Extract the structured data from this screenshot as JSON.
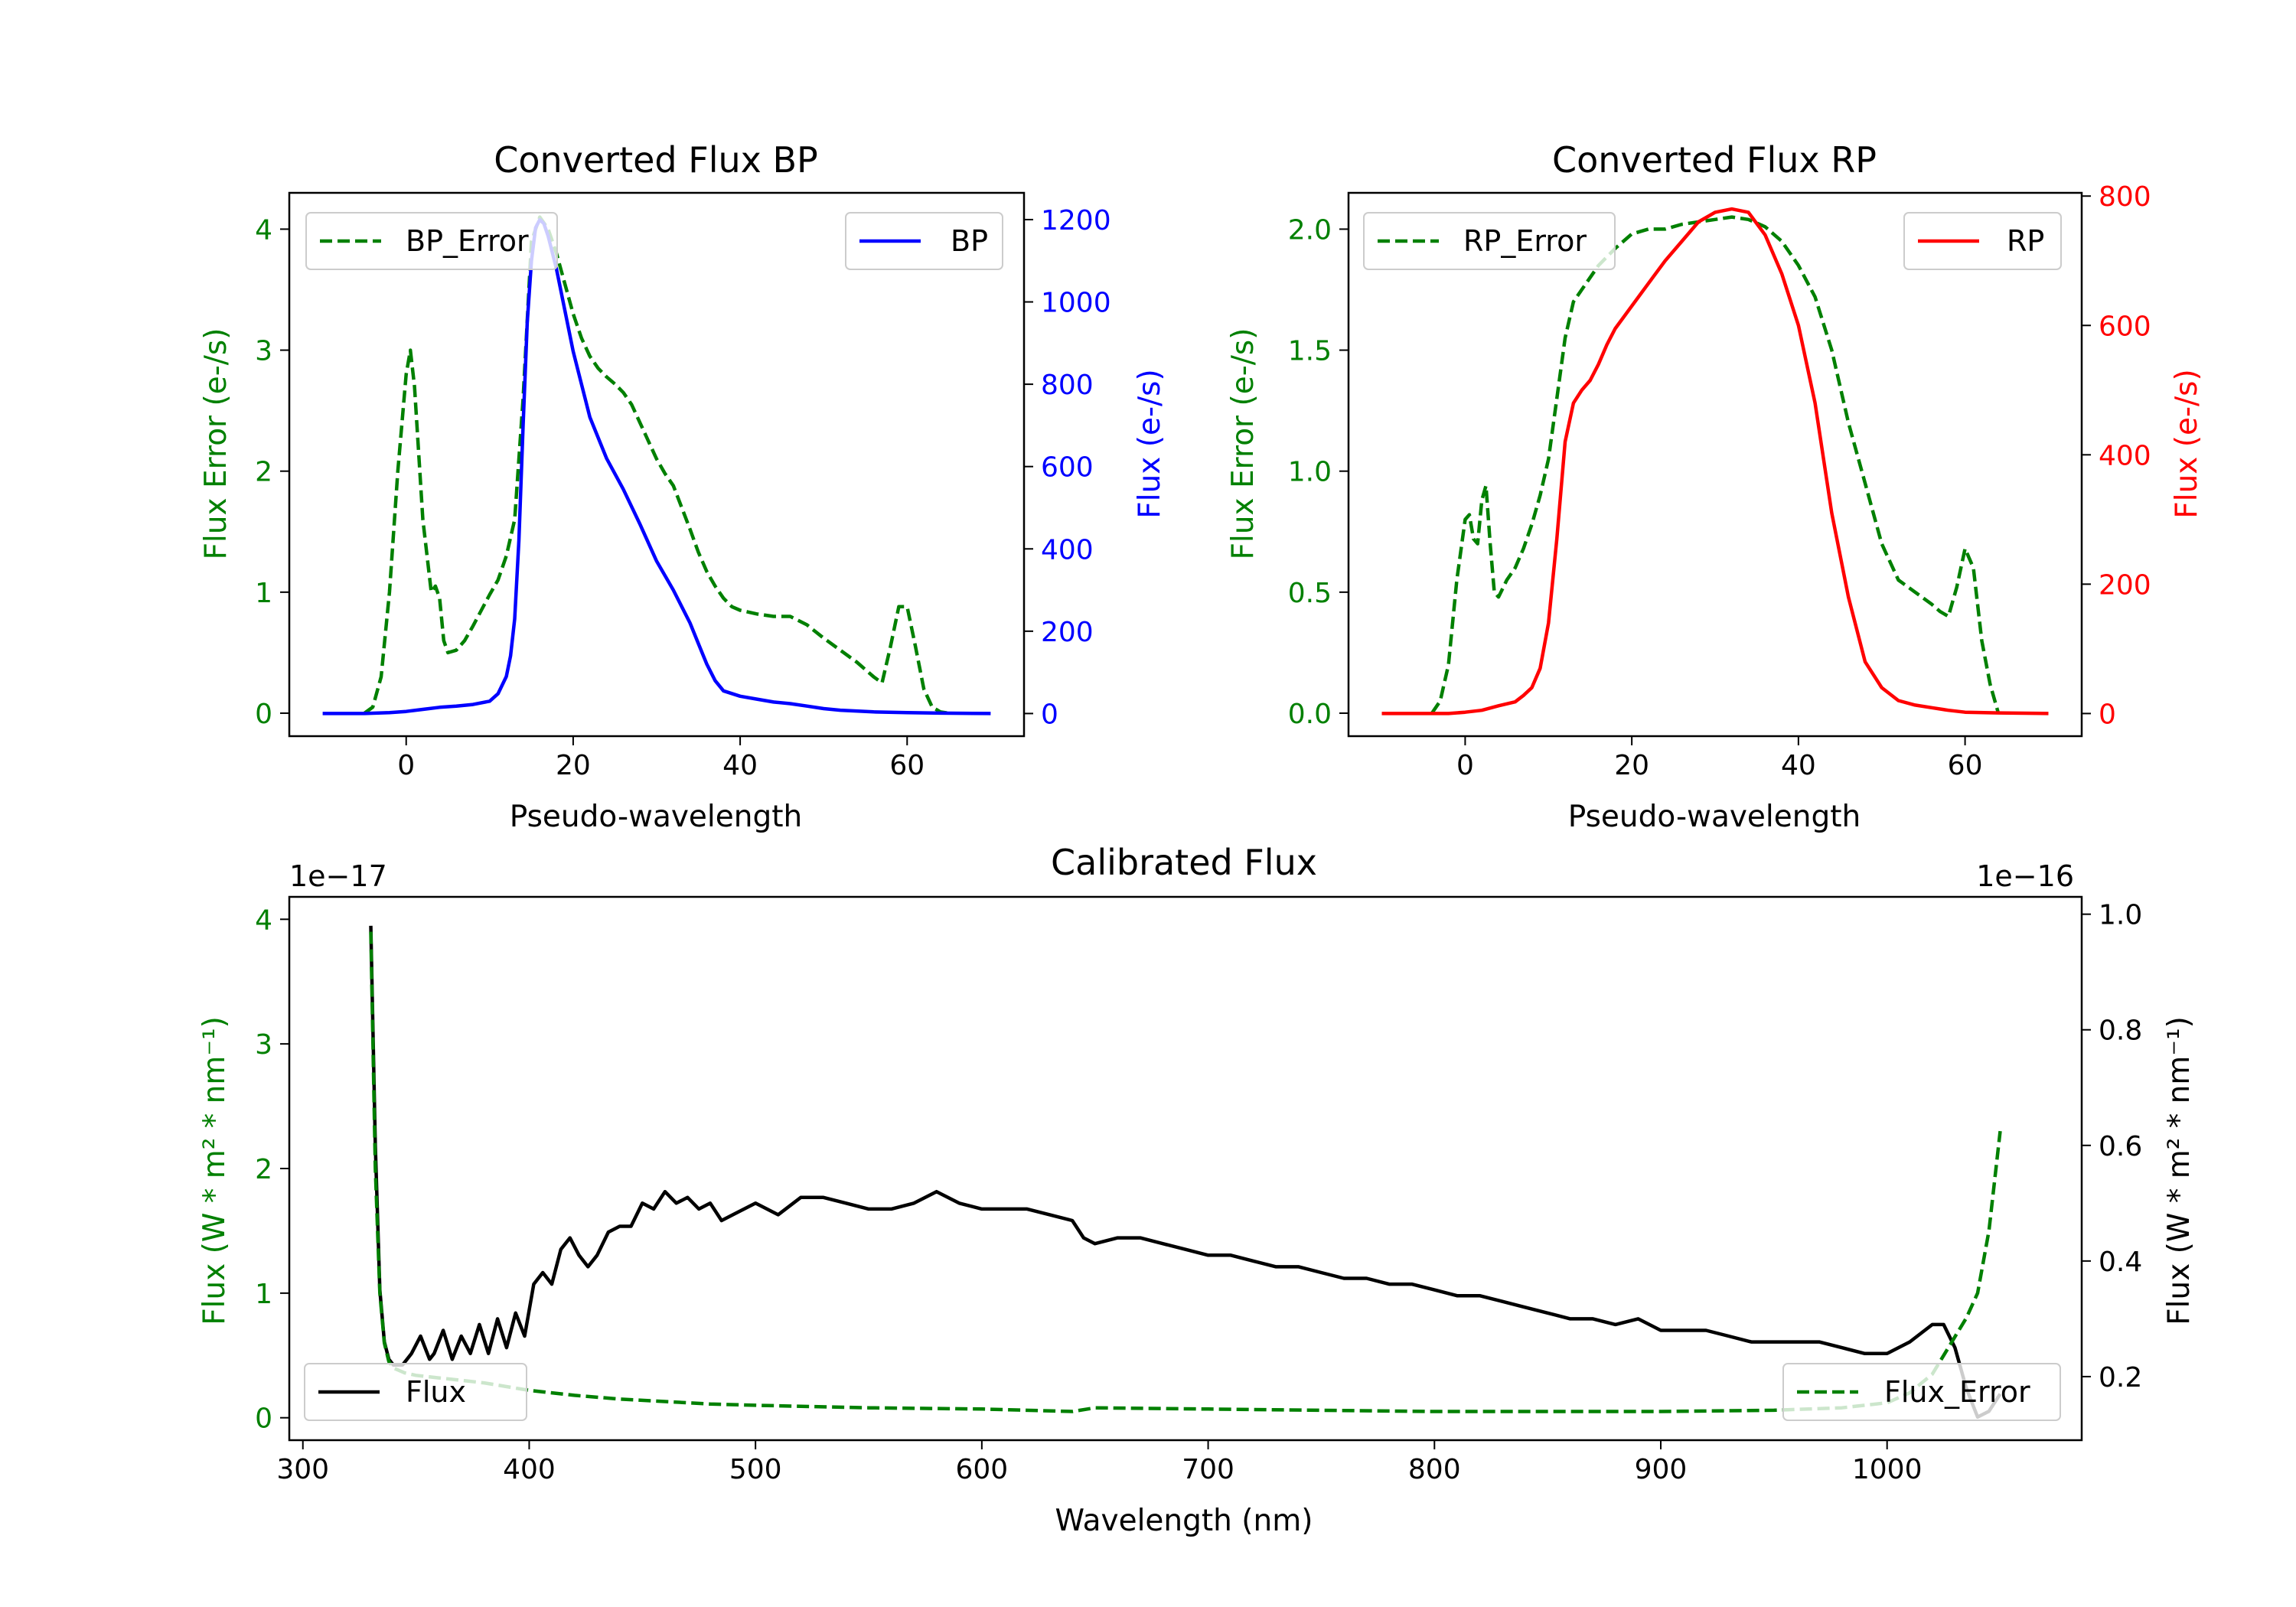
{
  "colors": {
    "error": "#008000",
    "bp": "#0000ff",
    "rp": "#ff0000",
    "flux": "#000000",
    "frame": "#000000"
  },
  "chart_data": [
    {
      "id": "bp",
      "type": "line",
      "title": "Converted Flux BP",
      "xlabel": "Pseudo-wavelength",
      "ylabel_left": "Flux Error (e-/s)",
      "ylabel_right": "Flux (e-/s)",
      "xlim": [
        -14,
        74
      ],
      "ylim_left": [
        -0.19,
        4.3
      ],
      "ylim_right": [
        -55,
        1265
      ],
      "x_ticks": [
        0,
        20,
        40,
        60
      ],
      "y_ticks_left": [
        0,
        1,
        2,
        3,
        4
      ],
      "y_ticks_right": [
        0,
        200,
        400,
        600,
        800,
        1000,
        1200
      ],
      "legend_left": "BP_Error",
      "legend_right": "BP",
      "series": [
        {
          "name": "BP_Error",
          "axis": "left",
          "style": "dashed",
          "color": "#008000",
          "x": [
            -5,
            -4,
            -3,
            -2,
            -1,
            0,
            0.5,
            1,
            2,
            3,
            3.5,
            4,
            4.5,
            5,
            6,
            7,
            8,
            9,
            10,
            11,
            12,
            13,
            14,
            15,
            16,
            17,
            18,
            19,
            20,
            21,
            22,
            23,
            24,
            25,
            26,
            27,
            28,
            29,
            30,
            31,
            32,
            33,
            34,
            35,
            36,
            37,
            38,
            39,
            40,
            42,
            44,
            46,
            48,
            50,
            52,
            54,
            56,
            57,
            58,
            59,
            60,
            61,
            62,
            63,
            64,
            65
          ],
          "y": [
            0,
            0.05,
            0.3,
            1.0,
            2.0,
            2.8,
            3.0,
            2.7,
            1.6,
            1.0,
            1.05,
            0.95,
            0.6,
            0.5,
            0.52,
            0.6,
            0.72,
            0.85,
            0.98,
            1.1,
            1.3,
            1.6,
            2.6,
            3.9,
            4.1,
            4.0,
            3.8,
            3.55,
            3.3,
            3.1,
            2.95,
            2.85,
            2.78,
            2.72,
            2.65,
            2.55,
            2.4,
            2.25,
            2.1,
            1.98,
            1.88,
            1.7,
            1.52,
            1.33,
            1.17,
            1.05,
            0.95,
            0.88,
            0.85,
            0.82,
            0.8,
            0.8,
            0.73,
            0.62,
            0.52,
            0.42,
            0.3,
            0.25,
            0.55,
            0.88,
            0.88,
            0.55,
            0.2,
            0.05,
            0.01,
            0
          ]
        },
        {
          "name": "BP",
          "axis": "right",
          "style": "solid",
          "color": "#0000ff",
          "x": [
            -10,
            -5,
            -2,
            0,
            2,
            4,
            6,
            8,
            10,
            11,
            12,
            12.5,
            13,
            13.5,
            14,
            14.5,
            15,
            15.5,
            16,
            16.5,
            17,
            18,
            19,
            20,
            22,
            24,
            26,
            28,
            30,
            32,
            34,
            35,
            36,
            37,
            38,
            40,
            42,
            44,
            46,
            48,
            50,
            52,
            56,
            60,
            64,
            70
          ],
          "y": [
            0,
            0,
            2,
            5,
            10,
            15,
            18,
            22,
            30,
            48,
            90,
            140,
            230,
            420,
            700,
            950,
            1100,
            1180,
            1200,
            1190,
            1160,
            1080,
            980,
            880,
            720,
            620,
            545,
            460,
            370,
            300,
            220,
            170,
            120,
            80,
            55,
            42,
            35,
            28,
            24,
            18,
            12,
            8,
            4,
            2,
            1,
            0
          ]
        }
      ]
    },
    {
      "id": "rp",
      "type": "line",
      "title": "Converted Flux RP",
      "xlabel": "Pseudo-wavelength",
      "ylabel_left": "Flux Error (e-/s)",
      "ylabel_right": "Flux (e-/s)",
      "xlim": [
        -14,
        74
      ],
      "ylim_left": [
        -0.095,
        2.15
      ],
      "ylim_right": [
        -35,
        805
      ],
      "x_ticks": [
        0,
        20,
        40,
        60
      ],
      "y_ticks_left": [
        0.0,
        0.5,
        1.0,
        1.5,
        2.0
      ],
      "y_ticks_left_labels": [
        "0.0",
        "0.5",
        "1.0",
        "1.5",
        "2.0"
      ],
      "y_ticks_right": [
        0,
        200,
        400,
        600,
        800
      ],
      "legend_left": "RP_Error",
      "legend_right": "RP",
      "series": [
        {
          "name": "RP_Error",
          "axis": "left",
          "style": "dashed",
          "color": "#008000",
          "x": [
            -4,
            -3,
            -2,
            -1,
            0,
            0.5,
            1,
            1.5,
            2,
            2.5,
            3,
            3.5,
            4,
            5,
            6,
            7,
            8,
            9,
            10,
            11,
            12,
            13,
            14,
            16,
            18,
            20,
            22,
            24,
            26,
            28,
            30,
            32,
            34,
            36,
            38,
            40,
            42,
            44,
            46,
            48,
            50,
            52,
            54,
            56,
            57,
            58,
            59,
            60,
            61,
            62,
            63,
            64
          ],
          "y": [
            0,
            0.05,
            0.2,
            0.55,
            0.8,
            0.82,
            0.72,
            0.7,
            0.88,
            0.94,
            0.7,
            0.5,
            0.48,
            0.55,
            0.6,
            0.68,
            0.78,
            0.9,
            1.05,
            1.3,
            1.55,
            1.7,
            1.75,
            1.85,
            1.92,
            1.98,
            2.0,
            2.0,
            2.02,
            2.03,
            2.04,
            2.05,
            2.04,
            2.01,
            1.95,
            1.85,
            1.72,
            1.5,
            1.2,
            0.95,
            0.7,
            0.55,
            0.5,
            0.45,
            0.42,
            0.4,
            0.52,
            0.68,
            0.6,
            0.3,
            0.12,
            0
          ]
        },
        {
          "name": "RP",
          "axis": "right",
          "style": "solid",
          "color": "#ff0000",
          "x": [
            -10,
            -5,
            -2,
            0,
            2,
            4,
            6,
            7,
            8,
            9,
            10,
            11,
            12,
            13,
            14,
            15,
            16,
            17,
            18,
            20,
            22,
            24,
            26,
            28,
            30,
            32,
            34,
            36,
            38,
            40,
            42,
            44,
            46,
            48,
            50,
            52,
            54,
            56,
            58,
            60,
            64,
            70
          ],
          "y": [
            0,
            0,
            0,
            2,
            5,
            12,
            18,
            28,
            40,
            70,
            140,
            270,
            420,
            480,
            500,
            515,
            540,
            570,
            595,
            630,
            665,
            700,
            730,
            760,
            775,
            780,
            775,
            740,
            680,
            600,
            480,
            310,
            180,
            80,
            40,
            20,
            13,
            9,
            5,
            2,
            1,
            0
          ]
        }
      ]
    },
    {
      "id": "calibrated",
      "type": "line",
      "title": "Calibrated Flux",
      "xlabel": "Wavelength (nm)",
      "ylabel_left": "Flux (W * m² * nm⁻¹)",
      "ylabel_right": "Flux (W * m² * nm⁻¹)",
      "offset_left": "1e−17",
      "offset_right": "1e−16",
      "xlim": [
        294,
        1086
      ],
      "ylim_left": [
        -0.18,
        4.18
      ],
      "ylim_right": [
        0.09,
        1.03
      ],
      "x_ticks": [
        300,
        400,
        500,
        600,
        700,
        800,
        900,
        1000
      ],
      "y_ticks_left": [
        0,
        1,
        2,
        3,
        4
      ],
      "y_ticks_right": [
        0.2,
        0.4,
        0.6,
        0.8,
        1.0
      ],
      "y_ticks_right_labels": [
        "0.2",
        "0.4",
        "0.6",
        "0.8",
        "1.0"
      ],
      "legend_left": "Flux",
      "legend_right": "Flux_Error",
      "series": [
        {
          "name": "Flux",
          "axis": "right",
          "style": "solid",
          "color": "#000000",
          "x": [
            330,
            332,
            334,
            336,
            338,
            340,
            344,
            348,
            352,
            356,
            358,
            362,
            366,
            370,
            374,
            378,
            382,
            386,
            390,
            394,
            398,
            402,
            406,
            410,
            414,
            418,
            422,
            426,
            430,
            435,
            440,
            445,
            450,
            455,
            460,
            465,
            470,
            475,
            480,
            485,
            490,
            500,
            510,
            520,
            530,
            540,
            550,
            560,
            570,
            580,
            590,
            600,
            610,
            620,
            630,
            640,
            645,
            650,
            660,
            670,
            680,
            690,
            700,
            710,
            720,
            730,
            740,
            750,
            760,
            770,
            780,
            790,
            800,
            810,
            820,
            830,
            840,
            850,
            860,
            870,
            880,
            890,
            900,
            910,
            920,
            930,
            940,
            950,
            960,
            970,
            980,
            990,
            1000,
            1010,
            1020,
            1025,
            1030,
            1035,
            1040,
            1045,
            1050
          ],
          "y": [
            0.98,
            0.6,
            0.35,
            0.26,
            0.23,
            0.22,
            0.22,
            0.24,
            0.27,
            0.23,
            0.24,
            0.28,
            0.23,
            0.27,
            0.24,
            0.29,
            0.24,
            0.3,
            0.25,
            0.31,
            0.27,
            0.36,
            0.38,
            0.36,
            0.42,
            0.44,
            0.41,
            0.39,
            0.41,
            0.45,
            0.46,
            0.46,
            0.5,
            0.49,
            0.52,
            0.5,
            0.51,
            0.49,
            0.5,
            0.47,
            0.48,
            0.5,
            0.48,
            0.51,
            0.51,
            0.5,
            0.49,
            0.49,
            0.5,
            0.52,
            0.5,
            0.49,
            0.49,
            0.49,
            0.48,
            0.47,
            0.44,
            0.43,
            0.44,
            0.44,
            0.43,
            0.42,
            0.41,
            0.41,
            0.4,
            0.39,
            0.39,
            0.38,
            0.37,
            0.37,
            0.36,
            0.36,
            0.35,
            0.34,
            0.34,
            0.33,
            0.32,
            0.31,
            0.3,
            0.3,
            0.29,
            0.3,
            0.28,
            0.28,
            0.28,
            0.27,
            0.26,
            0.26,
            0.26,
            0.26,
            0.25,
            0.24,
            0.24,
            0.26,
            0.29,
            0.29,
            0.25,
            0.18,
            0.13,
            0.14,
            0.17
          ]
        },
        {
          "name": "Flux_Error",
          "axis": "left",
          "style": "dashed",
          "color": "#008000",
          "x": [
            330,
            332,
            334,
            336,
            338,
            340,
            345,
            350,
            360,
            370,
            380,
            390,
            400,
            420,
            440,
            460,
            480,
            500,
            550,
            600,
            640,
            650,
            700,
            750,
            800,
            850,
            900,
            950,
            980,
            1000,
            1010,
            1020,
            1025,
            1030,
            1035,
            1040,
            1045,
            1050
          ],
          "y": [
            3.9,
            2.0,
            1.0,
            0.6,
            0.45,
            0.4,
            0.36,
            0.34,
            0.32,
            0.3,
            0.28,
            0.25,
            0.22,
            0.18,
            0.15,
            0.13,
            0.11,
            0.1,
            0.08,
            0.07,
            0.05,
            0.08,
            0.07,
            0.06,
            0.05,
            0.05,
            0.05,
            0.06,
            0.08,
            0.12,
            0.2,
            0.35,
            0.5,
            0.65,
            0.8,
            1.0,
            1.5,
            2.3
          ]
        }
      ]
    }
  ]
}
